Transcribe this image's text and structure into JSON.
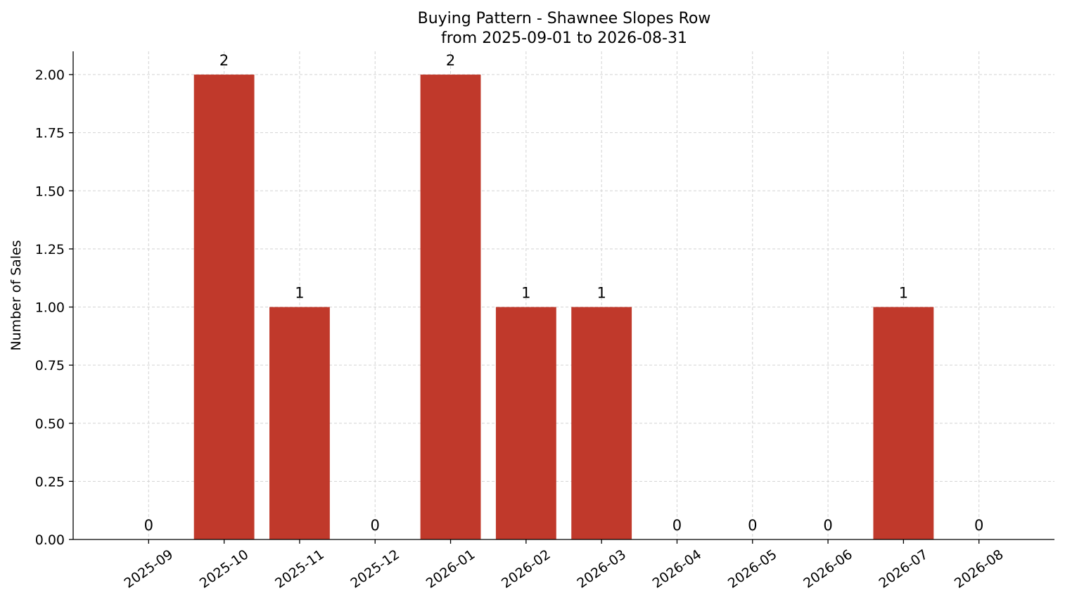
{
  "chart_data": {
    "type": "bar",
    "title": "Buying Pattern - Shawnee Slopes Row",
    "subtitle": "from 2025-09-01 to 2026-08-31",
    "y_label": "Number of Sales",
    "categories": [
      "2025-09",
      "2025-10",
      "2025-11",
      "2025-12",
      "2026-01",
      "2026-02",
      "2026-03",
      "2026-04",
      "2026-05",
      "2026-06",
      "2026-07",
      "2026-08"
    ],
    "values": [
      0,
      2,
      1,
      0,
      2,
      1,
      1,
      0,
      0,
      0,
      1,
      0
    ],
    "color": "#c0392b",
    "ylim": [
      0,
      2.1
    ],
    "yticks": [
      {
        "value": 0,
        "label": "0.00"
      },
      {
        "value": 0.25,
        "label": "0.25"
      },
      {
        "value": 0.5,
        "label": "0.50"
      },
      {
        "value": 0.75,
        "label": "0.75"
      },
      {
        "value": 1,
        "label": "1.00"
      },
      {
        "value": 1.25,
        "label": "1.25"
      },
      {
        "value": 1.5,
        "label": "1.50"
      },
      {
        "value": 1.75,
        "label": "1.75"
      },
      {
        "value": 2,
        "label": "2.00"
      }
    ],
    "grid": true
  }
}
